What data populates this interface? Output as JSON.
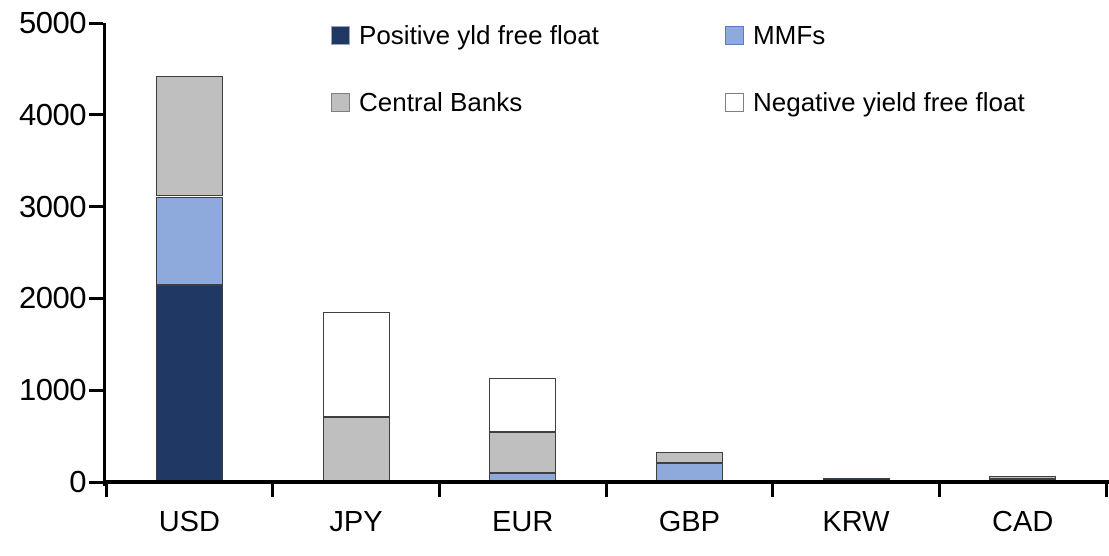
{
  "chart_data": {
    "type": "bar",
    "variant": "stacked-vertical",
    "categories": [
      "USD",
      "JPY",
      "EUR",
      "GBP",
      "KRW",
      "CAD"
    ],
    "series": [
      {
        "name": "Positive yld free float",
        "color": "#1f3864",
        "swatch_border": "#9aa4b4",
        "values": [
          2150,
          0,
          0,
          0,
          40,
          30
        ]
      },
      {
        "name": "MMFs",
        "color": "#8ea9db",
        "swatch_border": "#5b7dbe",
        "values": [
          960,
          0,
          100,
          210,
          0,
          0
        ]
      },
      {
        "name": "Central Banks",
        "color": "#bfbfbf",
        "swatch_border": "#7f7f7f",
        "values": [
          1310,
          710,
          440,
          120,
          0,
          35
        ]
      },
      {
        "name": "Negative yield free float",
        "color": "#ffffff",
        "swatch_border": "#7f7f7f",
        "values": [
          0,
          1140,
          590,
          0,
          0,
          0
        ]
      }
    ],
    "totals": [
      4420,
      1850,
      1130,
      330,
      40,
      65
    ],
    "ylim": [
      0,
      5000
    ],
    "ytick_step": 1000,
    "ytick_labels": [
      "0",
      "1000",
      "2000",
      "3000",
      "4000",
      "5000"
    ],
    "grid": false,
    "legend_position": "top",
    "axis_color": "#000000",
    "bar_outline_color": "#3f3f3f",
    "background_color": "#ffffff"
  }
}
